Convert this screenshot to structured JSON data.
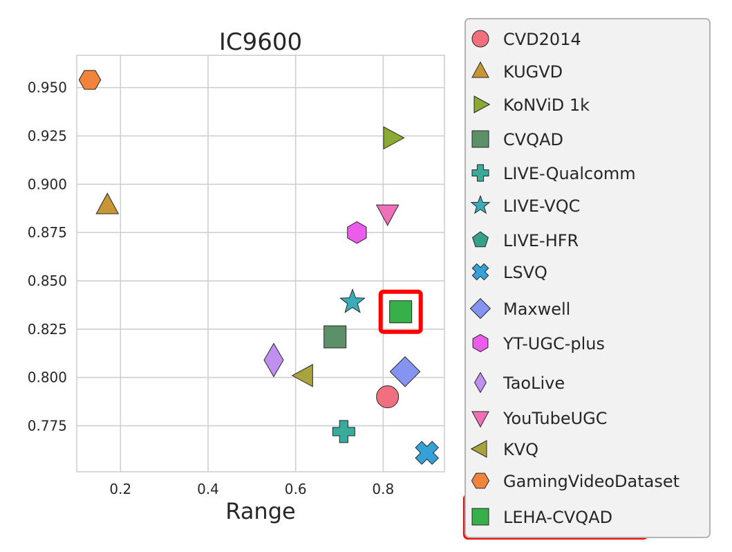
{
  "chart_data": {
    "type": "scatter",
    "title": "IC9600",
    "xlabel": "Range",
    "ylabel": "",
    "xlim": [
      0.1,
      0.94
    ],
    "ylim": [
      0.7512,
      0.9667
    ],
    "xticks": [
      "0.2",
      "0.4",
      "0.6",
      "0.8"
    ],
    "yticks": [
      "0.775",
      "0.800",
      "0.825",
      "0.850",
      "0.875",
      "0.900",
      "0.925",
      "0.950"
    ],
    "grid": true,
    "legend_position": "right-outside",
    "highlighted": "LEHA-CVQAD",
    "series": [
      {
        "name": "CVD2014",
        "marker": "circle",
        "color": "#f07080",
        "x": 0.81,
        "y": 0.79
      },
      {
        "name": "KUGVD",
        "marker": "triangle-up",
        "color": "#c89634",
        "x": 0.17,
        "y": 0.889
      },
      {
        "name": "KoNViD_1k",
        "marker": "triangle-right",
        "color": "#8aaa34",
        "x": 0.82,
        "y": 0.924
      },
      {
        "name": "CVQAD",
        "marker": "square",
        "color": "#5c9068",
        "x": 0.69,
        "y": 0.821
      },
      {
        "name": "LIVE-Qualcomm",
        "marker": "plus",
        "color": "#3aaa9a",
        "x": 0.71,
        "y": 0.772
      },
      {
        "name": "LIVE-VQC",
        "marker": "star",
        "color": "#3aabb8",
        "x": 0.73,
        "y": 0.839
      },
      {
        "name": "LIVE-HFR",
        "marker": "pentagon",
        "color": "#36a08a",
        "x": null,
        "y": null
      },
      {
        "name": "LSVQ",
        "marker": "x",
        "color": "#35a1d8",
        "x": 0.9,
        "y": 0.761
      },
      {
        "name": "Maxwell",
        "marker": "diamond",
        "color": "#8494f0",
        "x": 0.85,
        "y": 0.803
      },
      {
        "name": "YT-UGC-plus",
        "marker": "hexagon",
        "color": "#ec5cec",
        "x": 0.74,
        "y": 0.875
      },
      {
        "name": "TaoLive",
        "marker": "thin-diamond",
        "color": "#c090f0",
        "x": 0.55,
        "y": 0.809
      },
      {
        "name": "YouTubeUGC",
        "marker": "triangle-down",
        "color": "#f070b8",
        "x": 0.81,
        "y": 0.885
      },
      {
        "name": "KVQ",
        "marker": "triangle-left",
        "color": "#aaa23c",
        "x": 0.62,
        "y": 0.801
      },
      {
        "name": "GamingVideoDataset",
        "marker": "hexagon-flat",
        "color": "#f0843c",
        "x": 0.13,
        "y": 0.954
      },
      {
        "name": "LEHA-CVQAD",
        "marker": "square",
        "color": "#38b04a",
        "x": 0.84,
        "y": 0.834
      }
    ]
  },
  "colors": {
    "grid": "#cccccc",
    "axis_frame": "#cccccc",
    "highlight": "#ff0000",
    "legend_bg": "#f2f2f2",
    "legend_border": "#b3b3b3"
  }
}
